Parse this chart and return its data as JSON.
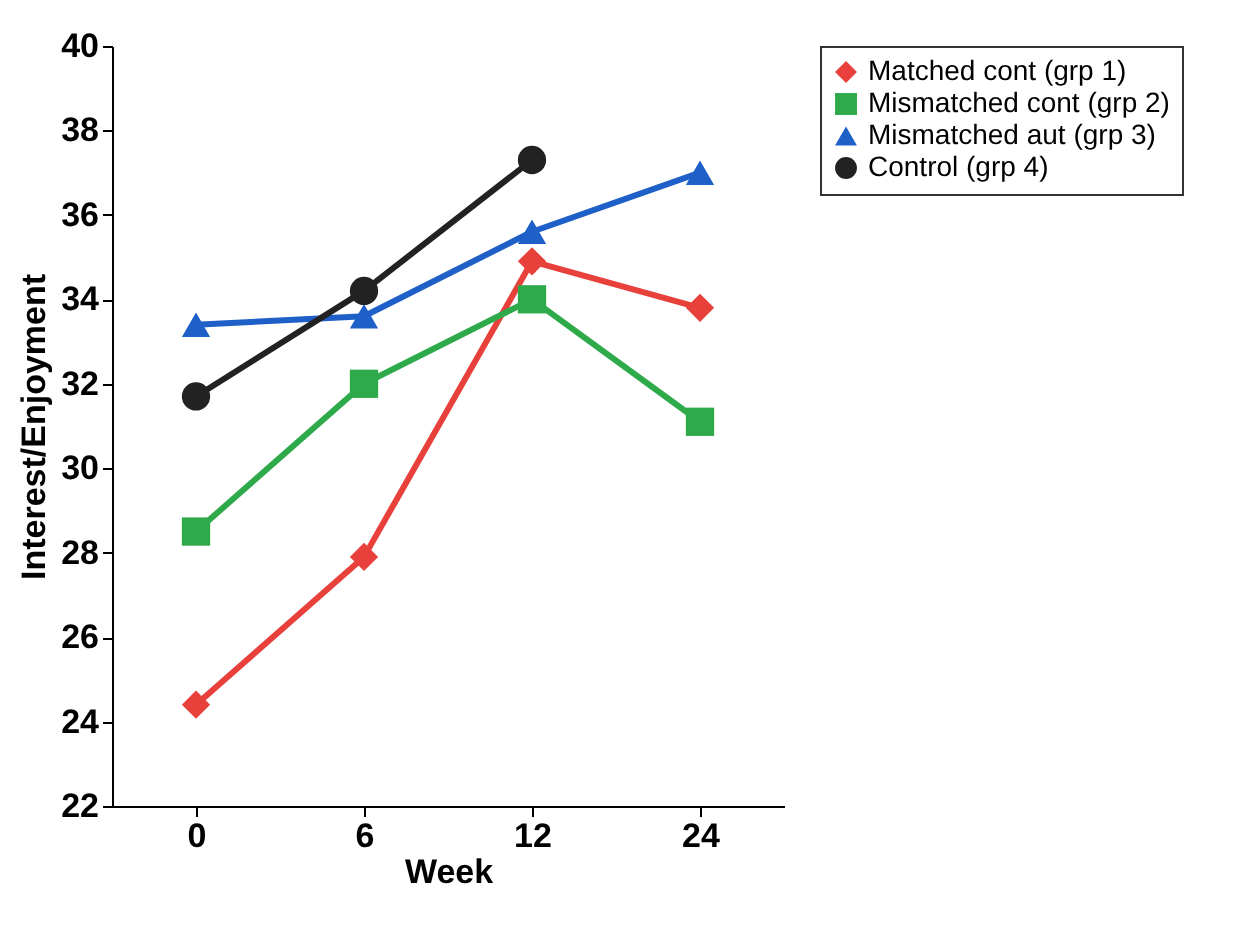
{
  "chart_data": {
    "type": "line",
    "xlabel": "Week",
    "ylabel": "Interest/Enjoyment",
    "categories": [
      "0",
      "6",
      "12",
      "24"
    ],
    "ylim": [
      22,
      40
    ],
    "yticks": [
      22,
      24,
      26,
      28,
      30,
      32,
      34,
      36,
      38,
      40
    ],
    "grid": false,
    "legend": "right",
    "series": [
      {
        "name": "Matched cont (grp 1)",
        "color": "#e8413c",
        "marker": "diamond",
        "values": [
          24.4,
          27.9,
          34.9,
          33.8
        ]
      },
      {
        "name": "Mismatched cont (grp 2)",
        "color": "#2eaa4a",
        "marker": "square",
        "values": [
          28.5,
          32.0,
          34.0,
          31.1
        ]
      },
      {
        "name": "Mismatched aut (grp 3)",
        "color": "#1f5fc8",
        "marker": "triangle",
        "values": [
          33.4,
          33.6,
          35.6,
          37.0
        ]
      },
      {
        "name": "Control (grp 4)",
        "color": "#222222",
        "marker": "circle",
        "values": [
          31.7,
          34.2,
          37.3,
          null
        ]
      }
    ]
  }
}
